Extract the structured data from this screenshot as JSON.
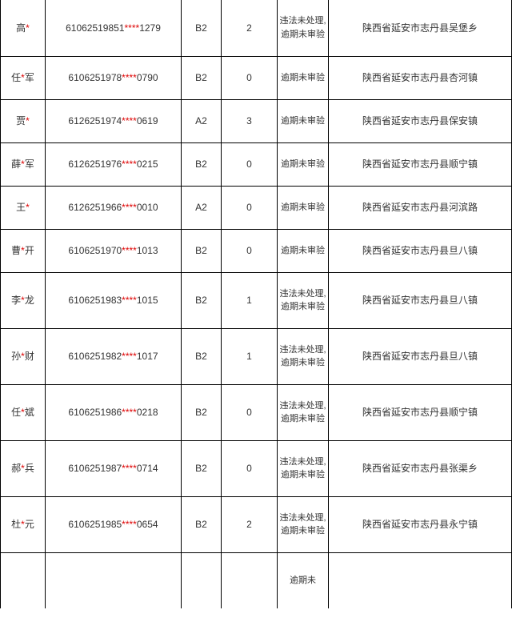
{
  "mask": "****",
  "rows": [
    {
      "name_a": "高",
      "name_b": "",
      "id_a": "61062519851",
      "id_b": "1279",
      "type": "B2",
      "num": "2",
      "status": "违法未处理,逾期未审验",
      "addr": "陕西省延安市志丹县吴堡乡",
      "tall": true,
      "topcut": true
    },
    {
      "name_a": "任",
      "name_b": "军",
      "id_a": "6106251978",
      "id_b": "0790",
      "type": "B2",
      "num": "0",
      "status": "逾期未审验",
      "addr": "陕西省延安市志丹县杏河镇",
      "tall": false
    },
    {
      "name_a": "贾",
      "name_b": "",
      "id_a": "6126251974",
      "id_b": "0619",
      "type": "A2",
      "num": "3",
      "status": "逾期未审验",
      "addr": "陕西省延安市志丹县保安镇",
      "tall": false
    },
    {
      "name_a": "薛",
      "name_b": "军",
      "id_a": "6126251976",
      "id_b": "0215",
      "type": "B2",
      "num": "0",
      "status": "逾期未审验",
      "addr": "陕西省延安市志丹县顺宁镇",
      "tall": false
    },
    {
      "name_a": "王",
      "name_b": "",
      "id_a": "6126251966",
      "id_b": "0010",
      "type": "A2",
      "num": "0",
      "status": "逾期未审验",
      "addr": "陕西省延安市志丹县河滨路",
      "tall": false
    },
    {
      "name_a": "曹",
      "name_b": "开",
      "id_a": "6106251970",
      "id_b": "1013",
      "type": "B2",
      "num": "0",
      "status": "逾期未审验",
      "addr": "陕西省延安市志丹县旦八镇",
      "tall": false
    },
    {
      "name_a": "李",
      "name_b": "龙",
      "id_a": "6106251983",
      "id_b": "1015",
      "type": "B2",
      "num": "1",
      "status": "违法未处理,逾期未审验",
      "addr": "陕西省延安市志丹县旦八镇",
      "tall": true
    },
    {
      "name_a": "孙",
      "name_b": "财",
      "id_a": "6106251982",
      "id_b": "1017",
      "type": "B2",
      "num": "1",
      "status": "违法未处理,逾期未审验",
      "addr": "陕西省延安市志丹县旦八镇",
      "tall": true
    },
    {
      "name_a": "任",
      "name_b": "斌",
      "id_a": "6106251986",
      "id_b": "0218",
      "type": "B2",
      "num": "0",
      "status": "违法未处理,逾期未审验",
      "addr": "陕西省延安市志丹县顺宁镇",
      "tall": true
    },
    {
      "name_a": "郝",
      "name_b": "兵",
      "id_a": "6106251987",
      "id_b": "0714",
      "type": "B2",
      "num": "0",
      "status": "违法未处理,逾期未审验",
      "addr": "陕西省延安市志丹县张渠乡",
      "tall": true
    },
    {
      "name_a": "杜",
      "name_b": "元",
      "id_a": "6106251985",
      "id_b": "0654",
      "type": "B2",
      "num": "2",
      "status": "违法未处理,逾期未审验",
      "addr": "陕西省延安市志丹县永宁镇",
      "tall": true
    }
  ],
  "partial_last": "逾期未"
}
